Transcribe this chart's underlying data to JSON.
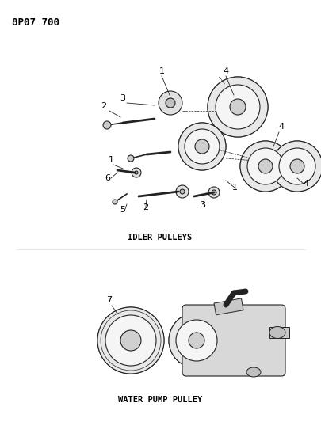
{
  "title": "8P07 700",
  "background_color": "#ffffff",
  "text_color": "#000000",
  "idler_label": "IDLER PULLEYS",
  "water_pump_label": "WATER PUMP PULLEY",
  "fig_width": 4.05,
  "fig_height": 5.33,
  "dpi": 100
}
